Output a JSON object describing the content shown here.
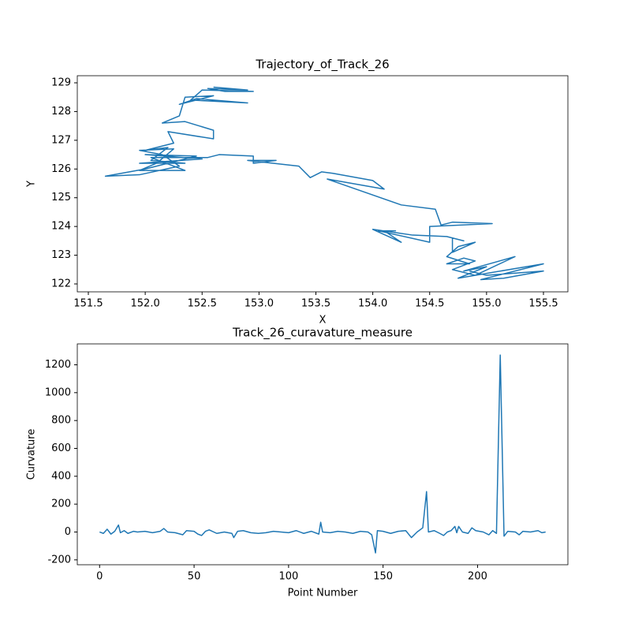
{
  "chart_data": [
    {
      "type": "line",
      "title": "Trajectory_of_Track_26",
      "xlabel": "X",
      "ylabel": "Y",
      "xlim": [
        151.403,
        155.715
      ],
      "ylim": [
        121.725,
        129.247
      ],
      "xticks": [
        151.5,
        {
          "value": 152,
          "label": "152.0"
        },
        152.5,
        {
          "value": 153,
          "label": "153.0"
        },
        153.5,
        {
          "value": 154,
          "label": "154.0"
        },
        154.5,
        {
          "value": 155,
          "label": "155.0"
        },
        155.5
      ],
      "yticks": [
        122,
        123,
        124,
        125,
        126,
        127,
        128,
        129
      ],
      "series": [
        {
          "color": "#1f77b4",
          "x": [
            152.6,
            152.9,
            152.55,
            152.7,
            152.95,
            152.5,
            152.4,
            152.9,
            152.45,
            152.3,
            152.6,
            152.35,
            152.3,
            152.15,
            152.35,
            152.6,
            152.6,
            152.2,
            152.25,
            152.0,
            152.2,
            152.05,
            152.35,
            151.95,
            152.5,
            152.0,
            152.45,
            152.0,
            151.65,
            151.95,
            152.3,
            152.15,
            151.95,
            152.25,
            152.1,
            151.95,
            152.35,
            152.05,
            152.55,
            152.65,
            152.95,
            152.95,
            153.15,
            152.9,
            153.35,
            153.45,
            153.55,
            153.65,
            154.0,
            154.1,
            153.6,
            154.25,
            154.55,
            154.6,
            154.7,
            155.05,
            154.5,
            154.5,
            154.05,
            154.2,
            154.1,
            154.25,
            154.0,
            154.35,
            154.65,
            154.8,
            154.7,
            154.7,
            154.9,
            154.75,
            154.65,
            154.85,
            154.65,
            154.8,
            154.9,
            154.7,
            154.9,
            155.25,
            154.8,
            155.0,
            154.75,
            155.5,
            154.95,
            155.15,
            155.5,
            155.0,
            154.85
          ],
          "values": [
            128.85,
            128.75,
            128.8,
            128.7,
            128.7,
            128.75,
            128.4,
            128.3,
            128.45,
            128.25,
            128.55,
            128.5,
            127.85,
            127.6,
            127.65,
            127.35,
            127.05,
            127.3,
            126.9,
            126.65,
            126.75,
            126.3,
            126.2,
            126.2,
            126.35,
            126.5,
            126.45,
            126.0,
            125.75,
            125.8,
            126.1,
            126.5,
            126.65,
            126.7,
            126.2,
            125.95,
            125.95,
            126.4,
            126.4,
            126.5,
            126.45,
            126.2,
            126.3,
            126.3,
            126.1,
            125.7,
            125.9,
            125.85,
            125.6,
            125.3,
            125.65,
            124.75,
            124.6,
            124.05,
            124.15,
            124.1,
            124.0,
            123.45,
            123.85,
            123.85,
            123.85,
            123.45,
            123.9,
            123.7,
            123.65,
            123.5,
            123.6,
            123.1,
            123.45,
            123.3,
            122.95,
            122.7,
            122.7,
            122.9,
            122.8,
            122.5,
            122.3,
            122.95,
            122.45,
            122.6,
            122.2,
            122.7,
            122.15,
            122.2,
            122.45,
            122.3,
            122.45
          ]
        }
      ]
    },
    {
      "type": "line",
      "title": "Track_26_curavature_measure",
      "xlabel": "Point Number",
      "ylabel": "Curvature",
      "xlim": [
        -11.8,
        247.8
      ],
      "ylim": [
        -235,
        1350
      ],
      "xticks": [
        0,
        50,
        100,
        150,
        200
      ],
      "yticks": [
        -200,
        0,
        200,
        400,
        600,
        800,
        1000,
        1200
      ],
      "series": [
        {
          "color": "#1f77b4",
          "x": [
            0,
            2,
            4,
            6,
            8,
            10,
            11,
            13,
            15,
            18,
            20,
            24,
            28,
            32,
            34,
            36,
            40,
            44,
            46,
            50,
            52,
            54,
            56,
            58,
            62,
            66,
            70,
            71,
            73,
            76,
            80,
            84,
            88,
            92,
            96,
            100,
            104,
            108,
            112,
            116,
            117,
            118,
            122,
            126,
            130,
            134,
            138,
            142,
            144,
            146,
            147,
            150,
            154,
            158,
            162,
            165,
            168,
            171,
            173,
            174,
            177,
            180,
            182,
            184,
            186,
            188,
            189,
            190,
            192,
            195,
            197,
            199,
            203,
            206,
            208,
            210,
            212,
            214,
            216,
            220,
            222,
            224,
            228,
            232,
            234,
            236
          ],
          "values": [
            0,
            -10,
            20,
            -15,
            5,
            50,
            -5,
            10,
            -10,
            5,
            0,
            5,
            -5,
            5,
            25,
            0,
            -5,
            -20,
            10,
            5,
            -15,
            -25,
            5,
            15,
            -10,
            0,
            -10,
            -40,
            5,
            10,
            -5,
            -10,
            -5,
            5,
            0,
            -5,
            10,
            -10,
            5,
            -15,
            70,
            0,
            -5,
            5,
            0,
            -10,
            5,
            0,
            -20,
            -150,
            10,
            5,
            -10,
            5,
            10,
            -40,
            0,
            30,
            290,
            0,
            10,
            -10,
            -25,
            0,
            10,
            40,
            -5,
            40,
            0,
            -10,
            30,
            10,
            0,
            -20,
            10,
            -10,
            1270,
            -30,
            5,
            0,
            -20,
            5,
            0,
            10,
            -5,
            0
          ]
        }
      ]
    }
  ]
}
